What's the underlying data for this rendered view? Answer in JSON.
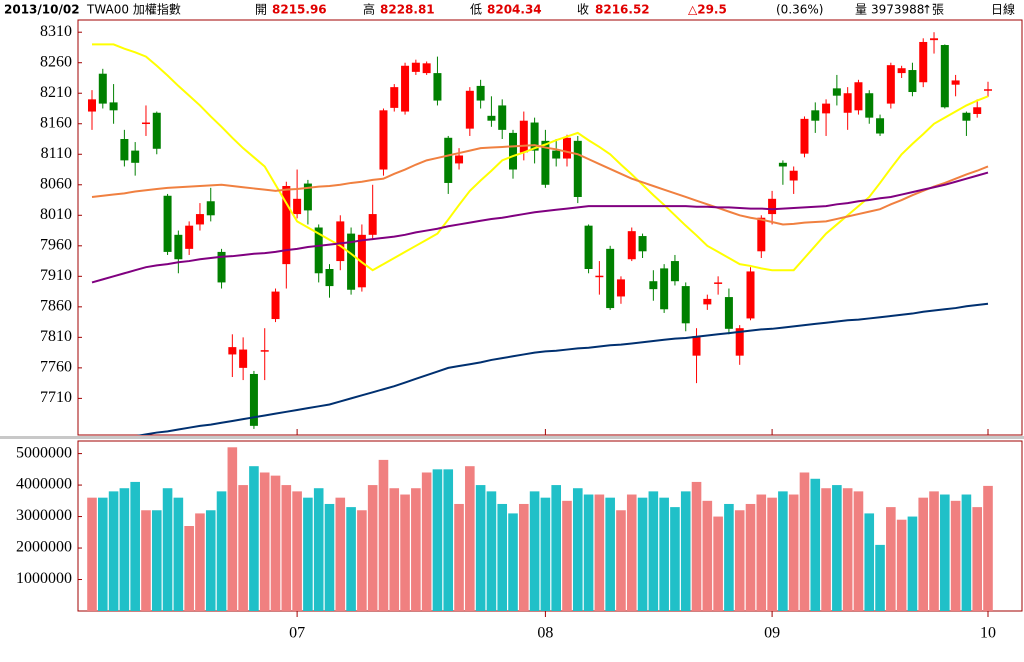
{
  "chart_data": {
    "type": "candlestick",
    "date": "2013/10/02",
    "symbol": "TWA00 加權指數",
    "open_label": "開",
    "high_label": "高",
    "low_label": "低",
    "close_label": "收",
    "change": "△29.5",
    "change_pct": "(0.36%)",
    "volume_label": "量",
    "volume_unit": "↑張",
    "period": "日線",
    "categories": [
      null,
      null,
      null,
      null,
      null,
      null,
      null,
      null,
      null,
      null,
      null,
      null,
      null,
      null,
      null,
      null,
      null,
      null,
      null,
      "07",
      null,
      null,
      null,
      null,
      null,
      null,
      null,
      null,
      null,
      null,
      null,
      null,
      null,
      null,
      null,
      null,
      null,
      null,
      null,
      null,
      null,
      null,
      "08",
      null,
      null,
      null,
      null,
      null,
      null,
      null,
      null,
      null,
      null,
      null,
      null,
      null,
      null,
      null,
      null,
      null,
      null,
      null,
      null,
      "09",
      null,
      null,
      null,
      null,
      null,
      null,
      null,
      null,
      null,
      null,
      null,
      null,
      null,
      null,
      null,
      null,
      null,
      null,
      null,
      "10"
    ],
    "open": [
      8180,
      8242,
      8195,
      8135,
      8116,
      8160,
      8178,
      8042,
      7978,
      7955,
      7995,
      8033,
      7950,
      7782,
      7760,
      7750,
      7787,
      7840,
      7930,
      8012,
      8062,
      7990,
      7922,
      7935,
      7980,
      7892,
      7978,
      8085,
      8186,
      8180,
      8245,
      8243,
      8243,
      8137,
      8095,
      8152,
      8222,
      8173,
      8190,
      8145,
      8113,
      8162,
      8132,
      8116,
      8103,
      8132,
      7993,
      7909,
      7955,
      7877,
      7938,
      7976,
      7902,
      7923,
      7935,
      7894,
      7780,
      7864,
      7898,
      7876,
      7780,
      7841,
      7951,
      8012,
      8096,
      8067,
      8111,
      8182,
      8177,
      8218,
      8178,
      8182,
      8210,
      8169,
      8193,
      8243,
      8248,
      8228,
      8297,
      8289,
      8224,
      8178,
      8176,
      8215.96
    ],
    "high": [
      8215,
      8250,
      8225,
      8150,
      8130,
      8190,
      8180,
      8045,
      7985,
      8000,
      8030,
      8055,
      7955,
      7815,
      7810,
      7755,
      7825,
      7890,
      8065,
      8085,
      8068,
      7995,
      7930,
      8010,
      7990,
      7995,
      8060,
      8185,
      8225,
      8260,
      8265,
      8262,
      8270,
      8140,
      8120,
      8220,
      8232,
      8205,
      8200,
      8150,
      8180,
      8170,
      8150,
      8135,
      8142,
      8140,
      7995,
      7935,
      7960,
      7910,
      7990,
      7980,
      7920,
      7930,
      7945,
      7900,
      7825,
      7880,
      7910,
      7890,
      7830,
      7925,
      8010,
      8050,
      8100,
      8090,
      8172,
      8195,
      8200,
      8240,
      8220,
      8232,
      8215,
      8175,
      8260,
      8255,
      8260,
      8300,
      8310,
      8290,
      8240,
      8180,
      8200,
      8228.81
    ],
    "low": [
      8150,
      8185,
      8160,
      8090,
      8075,
      8140,
      8110,
      7945,
      7915,
      7945,
      7985,
      8000,
      7890,
      7745,
      7740,
      7660,
      7740,
      7835,
      7890,
      8005,
      7995,
      7900,
      7875,
      7920,
      7880,
      7885,
      7970,
      8075,
      8180,
      8175,
      8240,
      8240,
      8190,
      8045,
      8085,
      8140,
      8185,
      8155,
      8135,
      8070,
      8100,
      8095,
      8055,
      8090,
      8090,
      8030,
      7915,
      7880,
      7855,
      7865,
      7935,
      7940,
      7870,
      7850,
      7895,
      7820,
      7735,
      7855,
      7880,
      7815,
      7765,
      7838,
      7940,
      7995,
      8060,
      8045,
      8105,
      8145,
      8140,
      8190,
      8150,
      8175,
      8160,
      8140,
      8185,
      8235,
      8205,
      8220,
      8275,
      8185,
      8205,
      8140,
      8170,
      8204.34
    ],
    "close": [
      8200,
      8193,
      8182,
      8100,
      8096,
      8162,
      8119,
      7950,
      7938,
      7993,
      8012,
      8010,
      7900,
      7794,
      7790,
      7665,
      7789,
      7885,
      8058,
      8037,
      8018,
      7915,
      7894,
      8000,
      7888,
      7978,
      8012,
      8182,
      8220,
      8255,
      8260,
      8259,
      8198,
      8063,
      8108,
      8214,
      8198,
      8165,
      8150,
      8085,
      8165,
      8116,
      8060,
      8103,
      8137,
      8040,
      7922,
      7911,
      7858,
      7905,
      7984,
      7951,
      7889,
      7856,
      7902,
      7833,
      7812,
      7873,
      7900,
      7824,
      7825,
      7918,
      8006,
      8037,
      8090,
      8083,
      8168,
      8165,
      8193,
      8206,
      8210,
      8228,
      8170,
      8144,
      8256,
      8251,
      8212,
      8294,
      8300,
      8187,
      8231,
      8165,
      8187,
      8216.52
    ],
    "up_color": "#ff0000",
    "down_color": "#008000",
    "ylim": [
      7650,
      8330
    ],
    "yticks": [
      7710,
      7760,
      7810,
      7860,
      7910,
      7960,
      8010,
      8060,
      8110,
      8160,
      8210,
      8260,
      8310
    ],
    "moving_averages": [
      {
        "color": "#ffff00",
        "values": [
          8290,
          8290,
          8290,
          8283,
          8277,
          8270,
          8255,
          8239,
          8222,
          8206,
          8190,
          8172,
          8155,
          8137,
          8120,
          8105,
          8090,
          8060,
          8030,
          8000,
          7990,
          7980,
          7970,
          7960,
          7947,
          7933,
          7920,
          7930,
          7940,
          7950,
          7960,
          7970,
          7980,
          8003,
          8027,
          8050,
          8067,
          8083,
          8100,
          8107,
          8113,
          8120,
          8126,
          8133,
          8139,
          8145,
          8133,
          8122,
          8110,
          8093,
          8077,
          8060,
          8043,
          8027,
          8010,
          7993,
          7977,
          7960,
          7950,
          7940,
          7930,
          7927,
          7923,
          7920,
          7920,
          7920,
          7940,
          7960,
          7980,
          7995,
          8010,
          8025,
          8040,
          8063,
          8087,
          8110,
          8127,
          8143,
          8160,
          8170,
          8180,
          8190,
          8198,
          8205
        ]
      },
      {
        "color": "#f08040",
        "values": [
          8040,
          8042,
          8044,
          8046,
          8049,
          8051,
          8053,
          8055,
          8056,
          8057,
          8058,
          8059,
          8060,
          8058,
          8056,
          8054,
          8052,
          8050,
          8052,
          8053,
          8055,
          8057,
          8058,
          8060,
          8063,
          8065,
          8068,
          8070,
          8078,
          8085,
          8093,
          8100,
          8104,
          8108,
          8112,
          8116,
          8120,
          8121,
          8122,
          8123,
          8124,
          8125,
          8121,
          8118,
          8114,
          8110,
          8102,
          8094,
          8086,
          8078,
          8070,
          8064,
          8058,
          8052,
          8046,
          8040,
          8034,
          8028,
          8022,
          8016,
          8010,
          8006,
          8003,
          7999,
          7995,
          7996,
          7998,
          7999,
          8000,
          8004,
          8008,
          8012,
          8016,
          8020,
          8028,
          8035,
          8043,
          8050,
          8057,
          8063,
          8070,
          8077,
          8083,
          8090
        ]
      },
      {
        "color": "#800080",
        "values": [
          7900,
          7905,
          7910,
          7915,
          7920,
          7925,
          7928,
          7930,
          7933,
          7935,
          7938,
          7940,
          7942,
          7943,
          7945,
          7947,
          7948,
          7950,
          7953,
          7955,
          7958,
          7960,
          7962,
          7964,
          7966,
          7969,
          7971,
          7973,
          7975,
          7978,
          7982,
          7985,
          7988,
          7992,
          7995,
          7998,
          8001,
          8004,
          8006,
          8009,
          8012,
          8015,
          8017,
          8019,
          8021,
          8023,
          8025,
          8025,
          8025,
          8025,
          8025,
          8025,
          8025,
          8025,
          8025,
          8025,
          8024,
          8024,
          8023,
          8023,
          8022,
          8021,
          8021,
          8020,
          8021,
          8022,
          8023,
          8024,
          8025,
          8028,
          8030,
          8033,
          8035,
          8038,
          8040,
          8044,
          8048,
          8052,
          8056,
          8060,
          8065,
          8070,
          8075,
          8080
        ]
      },
      {
        "color": "#003070",
        "values": [
          null,
          null,
          null,
          null,
          7648,
          7651,
          7654,
          7656,
          7659,
          7662,
          7665,
          7667,
          7670,
          7673,
          7676,
          7679,
          7682,
          7685,
          7688,
          7691,
          7694,
          7697,
          7700,
          7705,
          7710,
          7715,
          7720,
          7725,
          7730,
          7736,
          7742,
          7748,
          7754,
          7760,
          7763,
          7766,
          7769,
          7773,
          7776,
          7779,
          7782,
          7785,
          7787,
          7788,
          7790,
          7792,
          7793,
          7795,
          7797,
          7798,
          7800,
          7802,
          7804,
          7806,
          7808,
          7809,
          7811,
          7813,
          7815,
          7817,
          7819,
          7821,
          7823,
          7824,
          7826,
          7828,
          7830,
          7832,
          7834,
          7836,
          7838,
          7839,
          7841,
          7843,
          7845,
          7847,
          7849,
          7852,
          7854,
          7856,
          7858,
          7861,
          7863,
          7865
        ]
      }
    ],
    "volume": {
      "values": [
        3600000,
        3600000,
        3800000,
        3900000,
        4100000,
        3200000,
        3200000,
        3900000,
        3600000,
        2700000,
        3100000,
        3200000,
        3800000,
        5200000,
        4000000,
        4600000,
        4400000,
        4300000,
        4000000,
        3800000,
        3600000,
        3900000,
        3400000,
        3600000,
        3300000,
        3200000,
        4000000,
        4800000,
        3900000,
        3700000,
        3900000,
        4400000,
        4500000,
        4500000,
        3400000,
        4600000,
        4000000,
        3800000,
        3400000,
        3100000,
        3400000,
        3800000,
        3600000,
        4000000,
        3500000,
        3900000,
        3700000,
        3700000,
        3600000,
        3200000,
        3700000,
        3600000,
        3800000,
        3600000,
        3300000,
        3800000,
        4100000,
        3500000,
        3000000,
        3400000,
        3200000,
        3400000,
        3700000,
        3600000,
        3800000,
        3700000,
        4400000,
        4200000,
        3900000,
        4000000,
        3900000,
        3800000,
        3100000,
        2100000,
        3300000,
        2900000,
        3000000,
        3600000,
        3800000,
        3700000,
        3500000,
        3700000,
        3300000,
        3973988
      ],
      "up_color": "#f08080",
      "down_color": "#20c0c8",
      "ylim": [
        0,
        5400000
      ],
      "yticks": [
        1000000,
        2000000,
        3000000,
        4000000,
        5000000
      ]
    }
  }
}
